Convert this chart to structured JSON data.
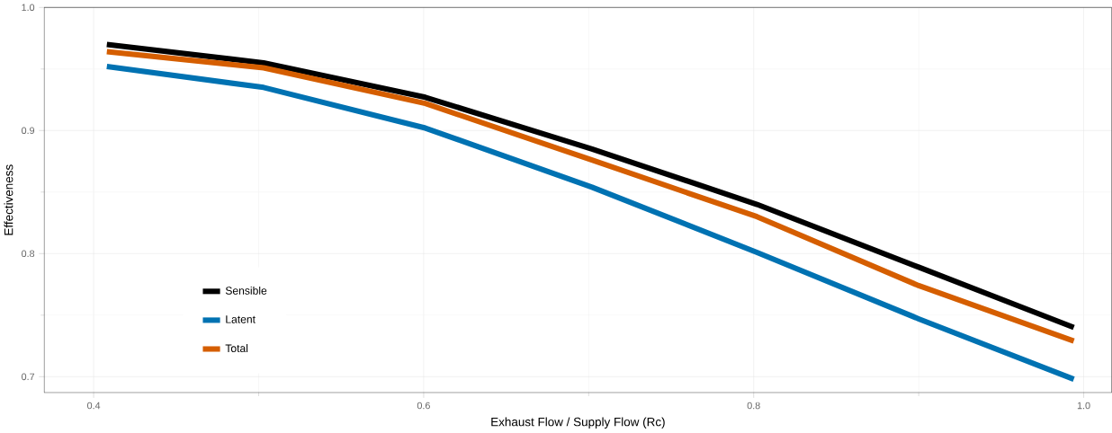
{
  "chart_data": {
    "type": "line",
    "xlabel": "Exhaust Flow / Supply Flow (Rc)",
    "ylabel": "Effectiveness",
    "x": [
      0.408,
      0.503,
      0.601,
      0.702,
      0.802,
      0.9,
      0.994
    ],
    "series": [
      {
        "name": "Sensible",
        "color": "#000000",
        "values": [
          0.97,
          0.955,
          0.927,
          0.885,
          0.84,
          0.789,
          0.74
        ]
      },
      {
        "name": "Latent",
        "color": "#0072b2",
        "values": [
          0.952,
          0.935,
          0.902,
          0.854,
          0.801,
          0.747,
          0.698
        ]
      },
      {
        "name": "Total",
        "color": "#d55e00",
        "values": [
          0.964,
          0.951,
          0.922,
          0.876,
          0.83,
          0.774,
          0.729
        ]
      }
    ],
    "xlim": [
      0.37,
      1.017
    ],
    "ylim": [
      0.687,
      1.0
    ],
    "xticks": [
      {
        "value": 0.4,
        "label": "0.4"
      },
      {
        "value": 0.6,
        "label": "0.6"
      },
      {
        "value": 0.8,
        "label": "0.8"
      },
      {
        "value": 1.0,
        "label": "1.0"
      }
    ],
    "yticks": [
      {
        "value": 0.7,
        "label": "0.7"
      },
      {
        "value": 0.8,
        "label": "0.8"
      },
      {
        "value": 0.9,
        "label": "0.9"
      },
      {
        "value": 1.0,
        "label": "1.0"
      }
    ],
    "grid": true,
    "legend": "bottom left",
    "marker": "none",
    "line_style": "solid"
  }
}
